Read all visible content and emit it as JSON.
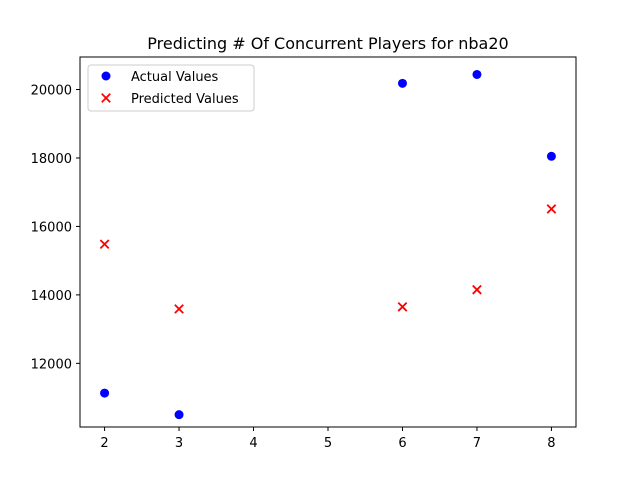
{
  "chart_data": {
    "type": "scatter",
    "title": "Predicting # Of Concurrent Players for nba20",
    "xlabel": "",
    "ylabel": "",
    "xlim": [
      1.67,
      8.33
    ],
    "ylim": [
      10140,
      20950
    ],
    "xticks": [
      2,
      3,
      4,
      5,
      6,
      7,
      8
    ],
    "yticks": [
      12000,
      14000,
      16000,
      18000,
      20000
    ],
    "grid": false,
    "legend_position": "upper-left",
    "series": [
      {
        "name": "Actual Values",
        "marker": "circle",
        "color": "#0000ff",
        "points": [
          {
            "x": 2,
            "y": 11130
          },
          {
            "x": 3,
            "y": 10500
          },
          {
            "x": 6,
            "y": 20180
          },
          {
            "x": 7,
            "y": 20440
          },
          {
            "x": 8,
            "y": 18050
          }
        ]
      },
      {
        "name": "Predicted Values",
        "marker": "x",
        "color": "#ff0000",
        "points": [
          {
            "x": 2,
            "y": 15480
          },
          {
            "x": 3,
            "y": 13590
          },
          {
            "x": 6,
            "y": 13650
          },
          {
            "x": 7,
            "y": 14150
          },
          {
            "x": 8,
            "y": 16510
          }
        ]
      }
    ]
  }
}
